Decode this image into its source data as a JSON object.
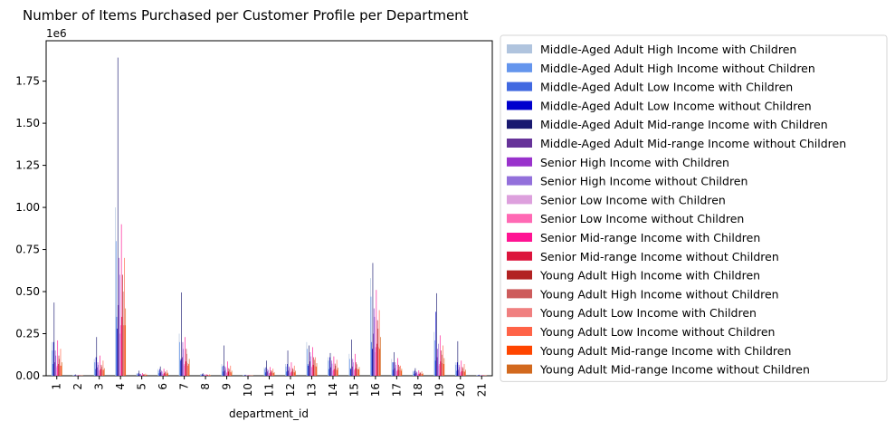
{
  "chart_data": {
    "type": "bar",
    "title": "Number of Items Purchased per Customer Profile per Department",
    "xlabel": "department_id",
    "ylabel": "",
    "y_scale_label": "1e6",
    "ylim": [
      0,
      1.99
    ],
    "yticks": [
      "0.00",
      "0.25",
      "0.50",
      "0.75",
      "1.00",
      "1.25",
      "1.50",
      "1.75"
    ],
    "ytick_values": [
      0,
      0.25,
      0.5,
      0.75,
      1.0,
      1.25,
      1.5,
      1.75
    ],
    "legend_position": "outside-right",
    "categories": [
      "1",
      "2",
      "3",
      "4",
      "5",
      "6",
      "7",
      "8",
      "9",
      "10",
      "11",
      "12",
      "13",
      "14",
      "15",
      "16",
      "17",
      "18",
      "19",
      "20",
      "21"
    ],
    "series": [
      {
        "name": "Middle-Aged Adult High Income with Children",
        "color": "#b0c4de",
        "values": [
          0.2,
          0.004,
          0.1,
          1.0,
          0.015,
          0.04,
          0.25,
          0.01,
          0.07,
          0.004,
          0.05,
          0.07,
          0.2,
          0.11,
          0.13,
          0.58,
          0.1,
          0.03,
          0.26,
          0.08,
          0.004
        ]
      },
      {
        "name": "Middle-Aged Adult High Income without Children",
        "color": "#6495ed",
        "values": [
          0.15,
          0.003,
          0.08,
          0.8,
          0.012,
          0.03,
          0.2,
          0.008,
          0.055,
          0.003,
          0.04,
          0.055,
          0.16,
          0.09,
          0.1,
          0.47,
          0.08,
          0.025,
          0.21,
          0.065,
          0.003
        ]
      },
      {
        "name": "Middle-Aged Adult Low Income with Children",
        "color": "#4169e1",
        "values": [
          0.07,
          0.002,
          0.04,
          0.35,
          0.006,
          0.015,
          0.09,
          0.004,
          0.025,
          0.002,
          0.02,
          0.025,
          0.07,
          0.04,
          0.045,
          0.2,
          0.035,
          0.012,
          0.09,
          0.03,
          0.002
        ]
      },
      {
        "name": "Middle-Aged Adult Low Income without Children",
        "color": "#0000cd",
        "values": [
          0.2,
          0.004,
          0.11,
          0.28,
          0.015,
          0.04,
          0.1,
          0.01,
          0.06,
          0.004,
          0.05,
          0.07,
          0.06,
          0.11,
          0.04,
          0.16,
          0.08,
          0.03,
          0.38,
          0.08,
          0.004
        ]
      },
      {
        "name": "Middle-Aged Adult Mid-range Income with Children",
        "color": "#191970",
        "values": [
          0.435,
          0.008,
          0.23,
          1.89,
          0.03,
          0.055,
          0.495,
          0.015,
          0.18,
          0.006,
          0.09,
          0.15,
          0.18,
          0.135,
          0.215,
          0.67,
          0.14,
          0.045,
          0.49,
          0.205,
          0.006
        ]
      },
      {
        "name": "Middle-Aged Adult Mid-range Income without Children",
        "color": "#663399",
        "values": [
          0.08,
          0.002,
          0.05,
          0.42,
          0.008,
          0.02,
          0.11,
          0.005,
          0.03,
          0.002,
          0.025,
          0.03,
          0.085,
          0.05,
          0.055,
          0.25,
          0.045,
          0.015,
          0.11,
          0.035,
          0.002
        ]
      },
      {
        "name": "Senior High Income with Children",
        "color": "#9932cc",
        "values": [
          0.15,
          0.003,
          0.08,
          0.7,
          0.012,
          0.03,
          0.2,
          0.008,
          0.055,
          0.003,
          0.04,
          0.055,
          0.14,
          0.09,
          0.1,
          0.4,
          0.08,
          0.025,
          0.16,
          0.065,
          0.003
        ]
      },
      {
        "name": "Senior High Income without Children",
        "color": "#9370db",
        "values": [
          0.12,
          0.003,
          0.065,
          0.6,
          0.01,
          0.025,
          0.16,
          0.006,
          0.045,
          0.003,
          0.032,
          0.045,
          0.115,
          0.072,
          0.08,
          0.35,
          0.065,
          0.02,
          0.19,
          0.052,
          0.003
        ]
      },
      {
        "name": "Senior Low Income with Children",
        "color": "#dda0dd",
        "values": [
          0.05,
          0.001,
          0.03,
          0.25,
          0.004,
          0.01,
          0.06,
          0.003,
          0.018,
          0.001,
          0.014,
          0.018,
          0.048,
          0.03,
          0.032,
          0.14,
          0.025,
          0.008,
          0.06,
          0.02,
          0.001
        ]
      },
      {
        "name": "Senior Low Income without Children",
        "color": "#ff69b4",
        "values": [
          0.06,
          0.001,
          0.035,
          0.3,
          0.005,
          0.012,
          0.07,
          0.003,
          0.02,
          0.001,
          0.016,
          0.02,
          0.055,
          0.035,
          0.038,
          0.17,
          0.03,
          0.01,
          0.07,
          0.024,
          0.001
        ]
      },
      {
        "name": "Senior Mid-range Income with Children",
        "color": "#ff1493",
        "values": [
          0.21,
          0.004,
          0.12,
          0.9,
          0.016,
          0.042,
          0.23,
          0.01,
          0.085,
          0.004,
          0.052,
          0.08,
          0.17,
          0.115,
          0.13,
          0.51,
          0.105,
          0.032,
          0.24,
          0.09,
          0.004
        ]
      },
      {
        "name": "Senior Mid-range Income without Children",
        "color": "#dc143c",
        "values": [
          0.07,
          0.002,
          0.04,
          0.35,
          0.006,
          0.015,
          0.085,
          0.004,
          0.025,
          0.002,
          0.02,
          0.025,
          0.065,
          0.04,
          0.045,
          0.19,
          0.035,
          0.012,
          0.085,
          0.028,
          0.002
        ]
      },
      {
        "name": "Young Adult High Income with Children",
        "color": "#b22222",
        "values": [
          0.12,
          0.003,
          0.065,
          0.6,
          0.01,
          0.025,
          0.16,
          0.006,
          0.045,
          0.003,
          0.032,
          0.045,
          0.11,
          0.072,
          0.08,
          0.33,
          0.065,
          0.02,
          0.15,
          0.052,
          0.003
        ]
      },
      {
        "name": "Young Adult High Income without Children",
        "color": "#cd5c5c",
        "values": [
          0.1,
          0.002,
          0.055,
          0.5,
          0.008,
          0.02,
          0.13,
          0.005,
          0.038,
          0.002,
          0.027,
          0.038,
          0.095,
          0.06,
          0.068,
          0.28,
          0.055,
          0.017,
          0.125,
          0.045,
          0.002
        ]
      },
      {
        "name": "Young Adult Low Income with Children",
        "color": "#f08080",
        "values": [
          0.06,
          0.001,
          0.035,
          0.3,
          0.005,
          0.012,
          0.075,
          0.003,
          0.022,
          0.001,
          0.016,
          0.022,
          0.056,
          0.036,
          0.04,
          0.17,
          0.032,
          0.01,
          0.075,
          0.026,
          0.001
        ]
      },
      {
        "name": "Young Adult Low Income without Children",
        "color": "#ff6347",
        "values": [
          0.16,
          0.003,
          0.09,
          0.7,
          0.013,
          0.033,
          0.06,
          0.008,
          0.06,
          0.003,
          0.042,
          0.06,
          0.11,
          0.095,
          0.04,
          0.39,
          0.06,
          0.026,
          0.18,
          0.07,
          0.003
        ]
      },
      {
        "name": "Young Adult Mid-range Income with Children",
        "color": "#ff4500",
        "values": [
          0.06,
          0.001,
          0.035,
          0.3,
          0.005,
          0.012,
          0.07,
          0.003,
          0.02,
          0.001,
          0.016,
          0.02,
          0.055,
          0.035,
          0.038,
          0.16,
          0.03,
          0.01,
          0.07,
          0.024,
          0.001
        ]
      },
      {
        "name": "Young Adult Mid-range Income without Children",
        "color": "#d2691e",
        "values": [
          0.08,
          0.002,
          0.045,
          0.4,
          0.007,
          0.018,
          0.1,
          0.004,
          0.03,
          0.002,
          0.022,
          0.03,
          0.075,
          0.048,
          0.052,
          0.23,
          0.042,
          0.014,
          0.105,
          0.036,
          0.002
        ]
      }
    ]
  }
}
